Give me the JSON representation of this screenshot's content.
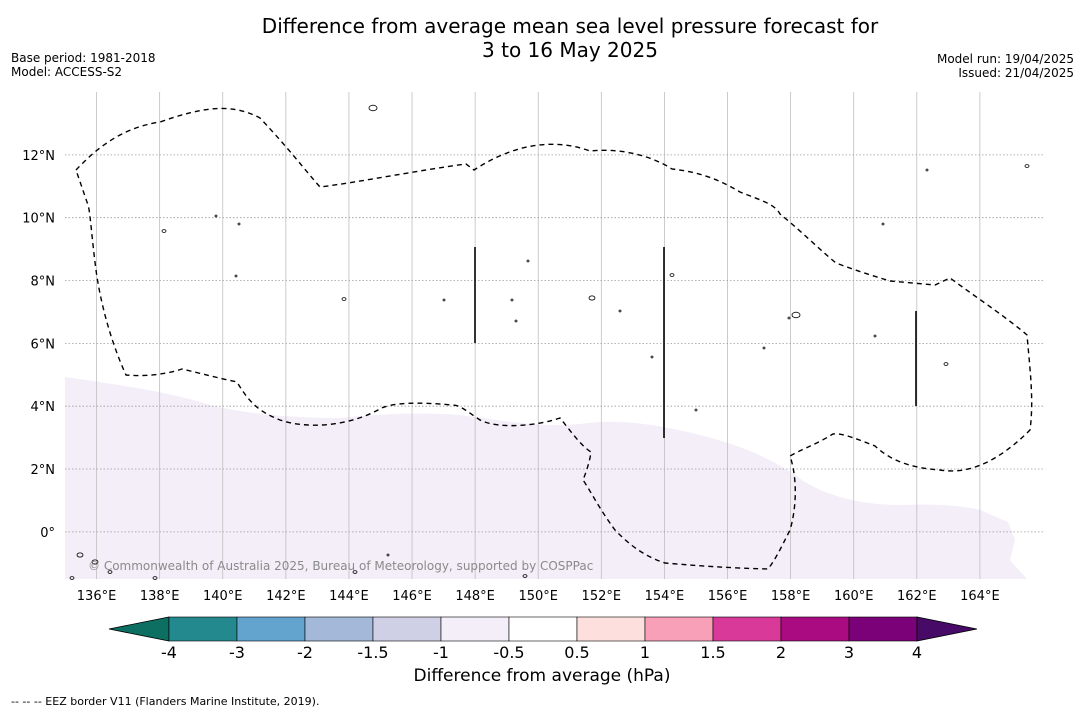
{
  "title_line1": "Difference from average mean sea level pressure forecast for",
  "title_line2": "3 to 16 May 2025",
  "meta_left": [
    "Base period: 1981-2018",
    "Model: ACCESS-S2"
  ],
  "meta_right": [
    "Model run: 19/04/2025",
    "Issued: 21/04/2025"
  ],
  "copyright": "© Commonwealth of Australia 2025, Bureau of Meteorology, supported by COSPPac",
  "footnote": "--  --  -- EEZ border V11 (Flanders Marine Institute, 2019).",
  "colorbar": {
    "title": "Difference from average (hPa)",
    "tick_labels": [
      "-4",
      "-3",
      "-2",
      "-1.5",
      "-1",
      "-0.5",
      "0.5",
      "1",
      "1.5",
      "2",
      "3",
      "4"
    ],
    "bin_colors": [
      "#23898e",
      "#63a4cf",
      "#a4b8da",
      "#cfcfe6",
      "#f3eef8",
      "#ffffff",
      "#fde0dd",
      "#f8a0b8",
      "#d93a9a",
      "#ab0b81",
      "#7a0177"
    ],
    "extend_low_color": "#0d6e62",
    "extend_high_color": "#470a67"
  },
  "map": {
    "lat_labels": [
      "12°N",
      "10°N",
      "8°N",
      "6°N",
      "4°N",
      "2°N",
      "0°"
    ],
    "lat_values": [
      12,
      10,
      8,
      6,
      4,
      2,
      0
    ],
    "lon_labels": [
      "136°E",
      "138°E",
      "140°E",
      "142°E",
      "144°E",
      "146°E",
      "148°E",
      "150°E",
      "152°E",
      "154°E",
      "156°E",
      "158°E",
      "160°E",
      "162°E",
      "164°E"
    ],
    "lon_values": [
      136,
      138,
      140,
      142,
      144,
      146,
      148,
      150,
      152,
      154,
      156,
      158,
      160,
      162,
      164
    ],
    "extent": {
      "lon_min": 135.0,
      "lon_max": 166.0,
      "lat_min": -1.5,
      "lat_max": 14.0
    },
    "shaded_region": {
      "category": "-1 to -0.5",
      "color": "#f3eef8"
    }
  }
}
